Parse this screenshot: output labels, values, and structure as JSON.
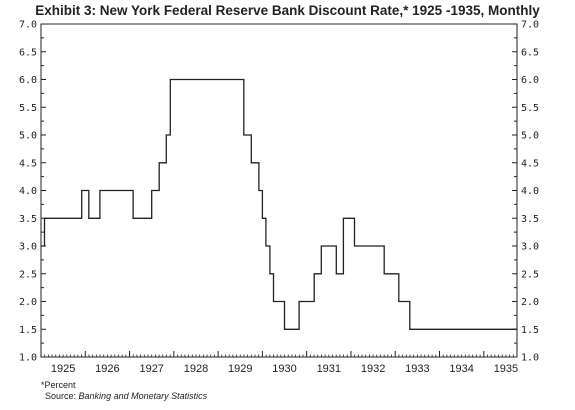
{
  "chart_data": {
    "type": "line",
    "title": "Exhibit 3: New York Federal Reserve Bank Discount Rate,* 1925 -1935, Monthly",
    "xlabel": "",
    "ylabel": "",
    "xlim": [
      1925.0,
      1935.75
    ],
    "ylim": [
      1.0,
      7.0
    ],
    "y_ticks": [
      "1.0",
      "1.5",
      "2.0",
      "2.5",
      "3.0",
      "3.5",
      "4.0",
      "4.5",
      "5.0",
      "5.5",
      "6.0",
      "6.5",
      "7.0"
    ],
    "x_ticks": [
      "1925",
      "1926",
      "1927",
      "1928",
      "1929",
      "1930",
      "1931",
      "1932",
      "1933",
      "1934",
      "1935"
    ],
    "grid": false,
    "series": [
      {
        "x": [
          1925.0,
          1925.08,
          1925.08,
          1925.92,
          1925.92,
          1926.08,
          1926.08,
          1926.33,
          1926.33,
          1927.08,
          1927.08,
          1927.5,
          1927.5,
          1927.67,
          1927.67,
          1927.83,
          1927.83,
          1927.92,
          1927.92,
          1929.58,
          1929.58,
          1929.75,
          1929.75,
          1929.92,
          1929.92,
          1930.0,
          1930.0,
          1930.08,
          1930.08,
          1930.17,
          1930.17,
          1930.25,
          1930.25,
          1930.5,
          1930.5,
          1930.83,
          1930.83,
          1931.17,
          1931.17,
          1931.33,
          1931.33,
          1931.67,
          1931.67,
          1931.83,
          1931.83,
          1932.08,
          1932.08,
          1932.75,
          1932.75,
          1933.08,
          1933.08,
          1933.33,
          1933.33,
          1933.5,
          1933.5,
          1935.75
        ],
        "y": [
          3.0,
          3.0,
          3.5,
          3.5,
          4.0,
          4.0,
          3.5,
          3.5,
          4.0,
          4.0,
          3.5,
          3.5,
          4.0,
          4.0,
          4.5,
          4.5,
          5.0,
          5.0,
          6.0,
          6.0,
          5.0,
          5.0,
          4.5,
          4.5,
          4.0,
          4.0,
          3.5,
          3.5,
          3.0,
          3.0,
          2.5,
          2.5,
          2.0,
          2.0,
          1.5,
          1.5,
          2.0,
          2.0,
          2.5,
          2.5,
          3.0,
          3.0,
          2.5,
          2.5,
          3.5,
          3.5,
          3.0,
          3.0,
          2.5,
          2.5,
          2.0,
          2.0,
          1.5,
          1.5,
          1.5,
          1.5
        ]
      }
    ]
  },
  "footnote": "*Percent",
  "source_label": "Source:",
  "source_text": "Banking and Monetary Statistics"
}
